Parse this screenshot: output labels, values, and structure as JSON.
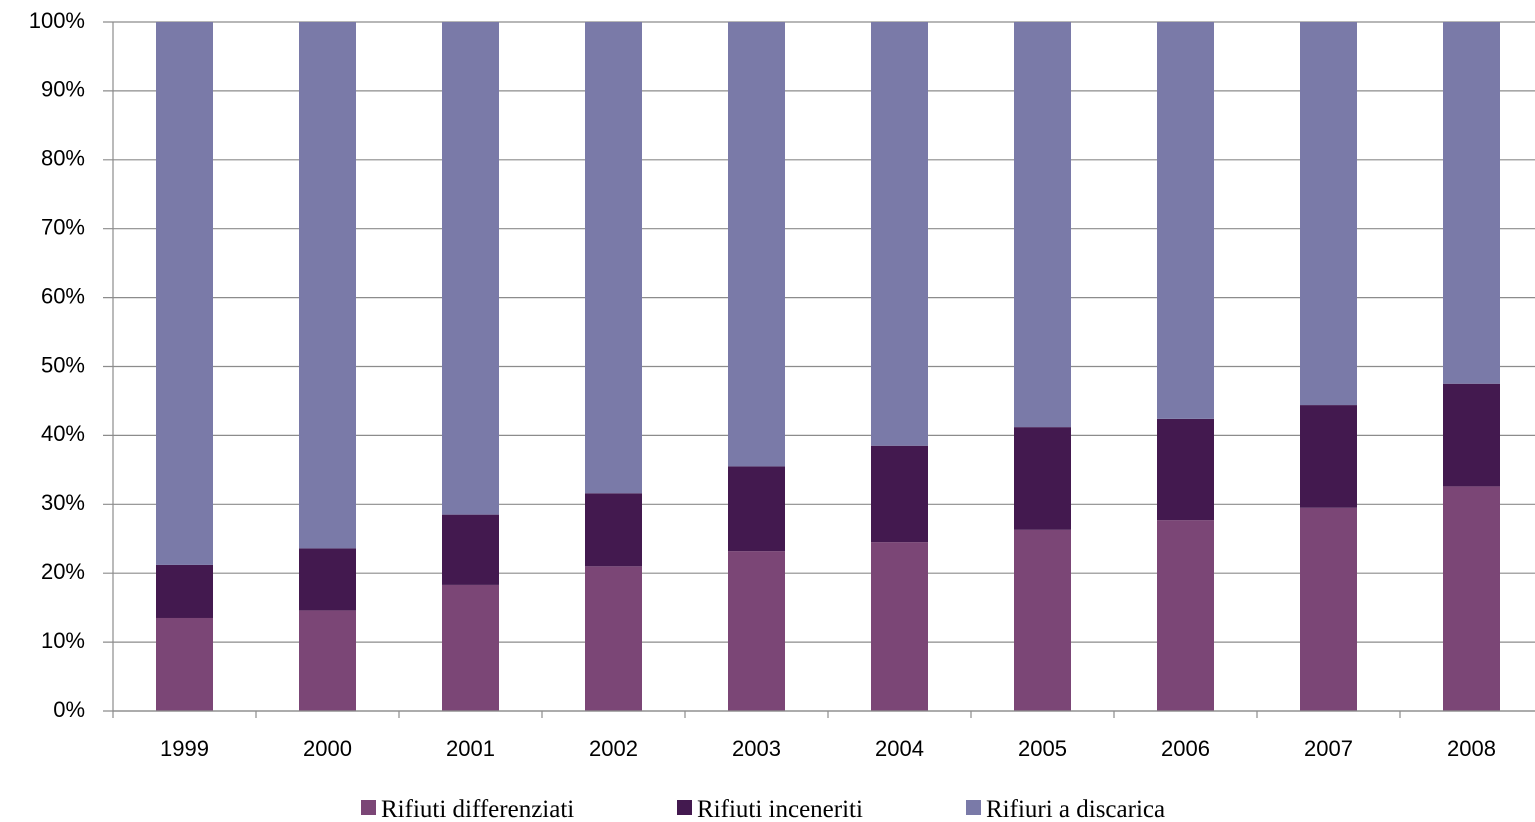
{
  "chart_data": {
    "type": "bar",
    "stacked": true,
    "percent": true,
    "categories": [
      "1999",
      "2000",
      "2001",
      "2002",
      "2003",
      "2004",
      "2005",
      "2006",
      "2007",
      "2008"
    ],
    "series": [
      {
        "name": "Rifiuti differenziati",
        "color": "#7b4676",
        "values": [
          13.5,
          14.6,
          18.3,
          21.0,
          23.2,
          24.5,
          26.3,
          27.7,
          29.5,
          32.6
        ]
      },
      {
        "name": "Rifiuti inceneriti",
        "color": "#43194f",
        "values": [
          7.7,
          9.0,
          10.2,
          10.6,
          12.3,
          14.0,
          14.9,
          14.7,
          14.9,
          14.9
        ]
      },
      {
        "name": "Rifiuri a discarica",
        "color": "#7a7aa8",
        "values": [
          78.8,
          76.4,
          71.5,
          68.4,
          64.5,
          61.5,
          58.8,
          57.6,
          55.6,
          52.5
        ]
      }
    ],
    "ylim": [
      0,
      100
    ],
    "yticks": [
      "0%",
      "10%",
      "20%",
      "30%",
      "40%",
      "50%",
      "60%",
      "70%",
      "80%",
      "90%",
      "100%"
    ],
    "grid": true,
    "legend_position": "bottom"
  }
}
